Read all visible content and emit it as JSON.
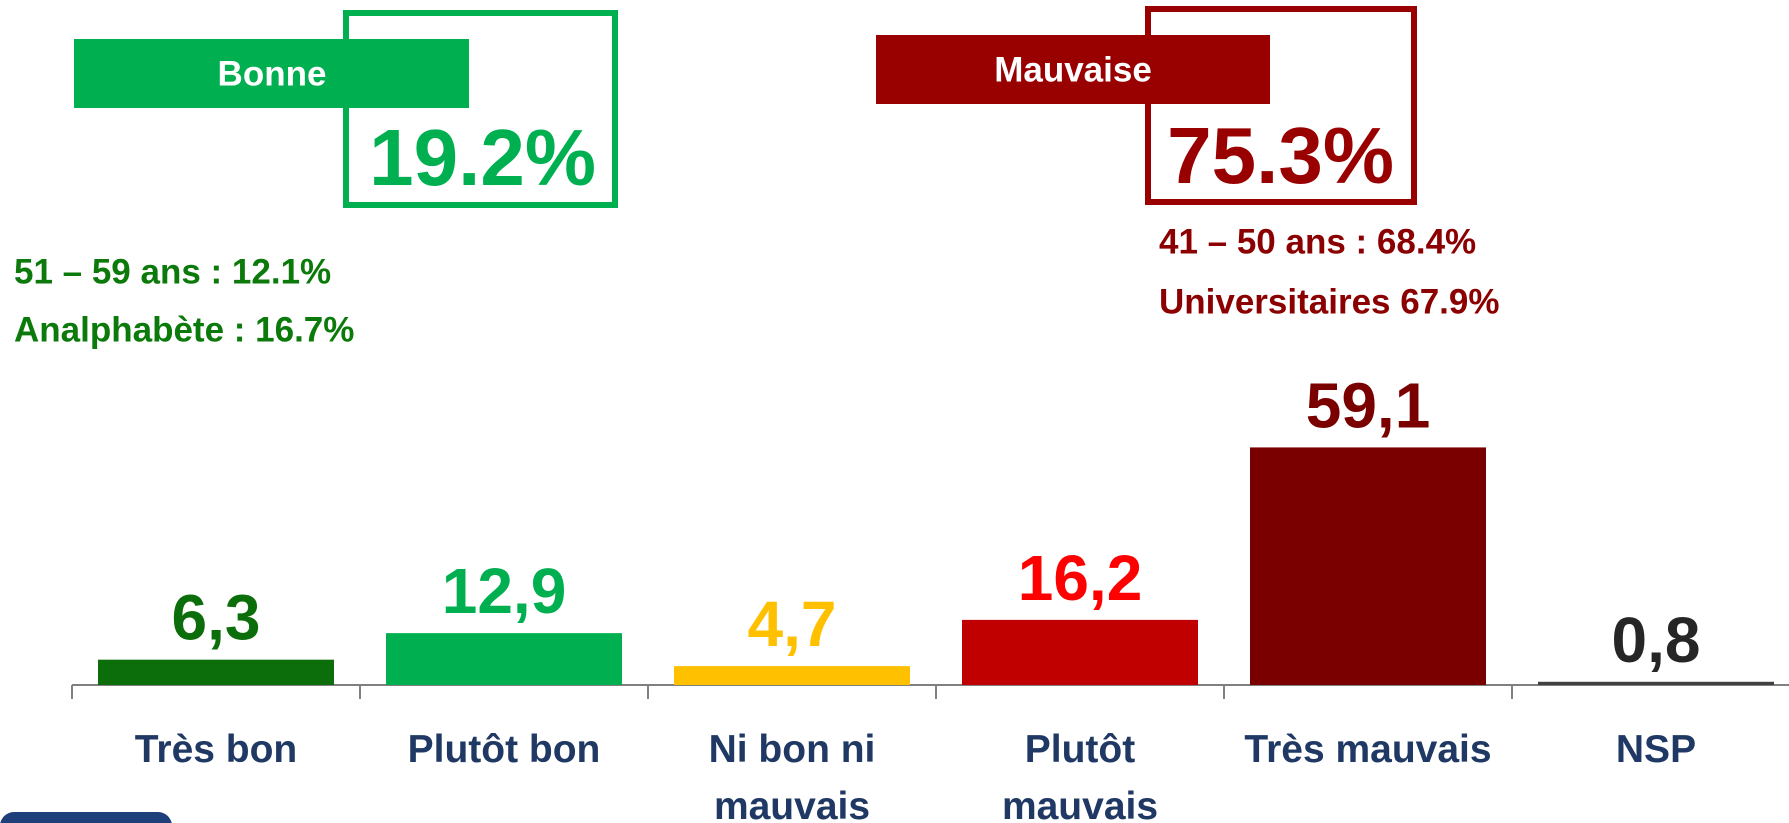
{
  "chart_data": {
    "type": "bar",
    "categories": [
      "Très bon",
      "Plutôt bon",
      "Ni bon ni mauvais",
      "Plutôt mauvais",
      "Très mauvais",
      "NSP"
    ],
    "values": [
      6.3,
      12.9,
      4.7,
      16.2,
      59.1,
      0.8
    ],
    "value_labels": [
      "6,3",
      "12,9",
      "4,7",
      "16,2",
      "59,1",
      "0,8"
    ],
    "colors": [
      "#0b6e0b",
      "#00b050",
      "#ffc000",
      "#c00000",
      "#7a0000",
      "#404040"
    ],
    "label_colors": [
      "#0b6e0b",
      "#00b050",
      "#ffc000",
      "#ff0000",
      "#7a0000",
      "#262626"
    ],
    "annotations": [
      {
        "label": "Bonne",
        "total": "19.2%",
        "color": "#00b050",
        "note_color": "#0b7a0b",
        "notes": [
          "51 – 59 ans : 12.1%",
          "Analphabète : 16.7%"
        ]
      },
      {
        "label": "Mauvaise",
        "total": "75.3%",
        "color": "#990000",
        "note_color": "#8b0000",
        "notes": [
          "41 – 50 ans : 68.4%",
          "Universitaires 67.9%"
        ]
      }
    ]
  }
}
